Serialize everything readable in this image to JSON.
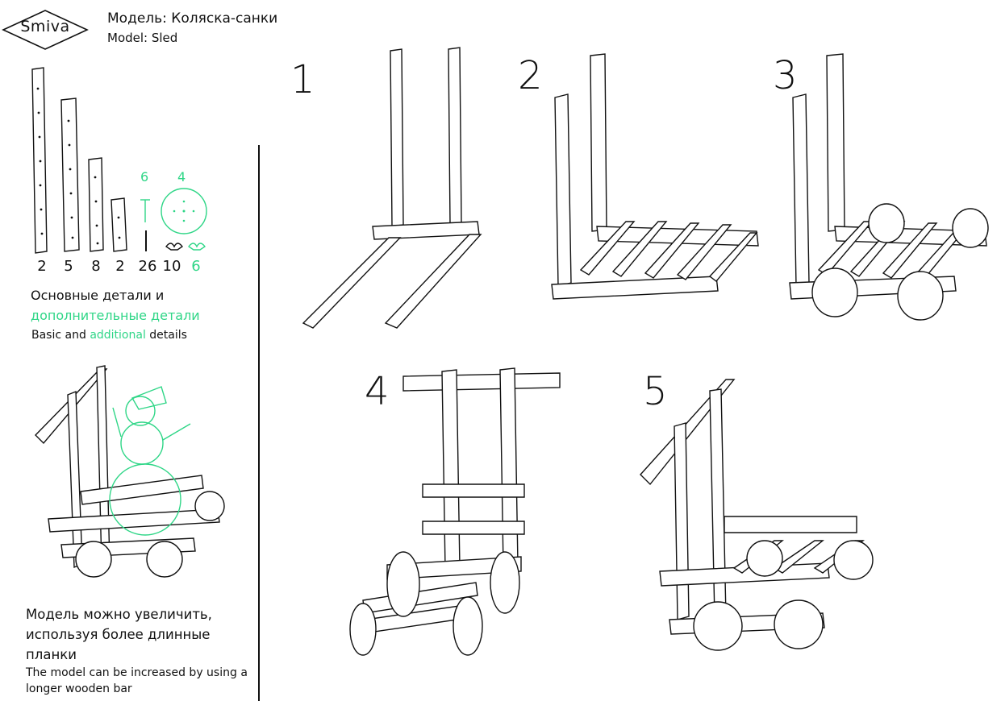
{
  "brand": {
    "logo_text": "Smiva"
  },
  "header": {
    "model_ru": "Модель: Коляска-санки",
    "model_en": "Model: Sled"
  },
  "parts": {
    "counts": [
      "2",
      "5",
      "8",
      "2",
      "26",
      "10",
      "6"
    ],
    "extra_counts": [
      "6",
      "4"
    ],
    "accent_color": "#2fd687",
    "basic_ru": "Основные детали и",
    "additional_ru": "дополнительные детали",
    "basic_en_prefix": "Basic and ",
    "basic_en_accent": "additional",
    "basic_en_suffix": " details"
  },
  "steps": [
    "1",
    "2",
    "3",
    "4",
    "5"
  ],
  "footer": {
    "line1_ru": "Модель можно увеличить,",
    "line2_ru": "используя более длинные",
    "line3_ru": "планки",
    "line1_en": "The model can be increased by using a",
    "line2_en": "longer wooden bar"
  }
}
